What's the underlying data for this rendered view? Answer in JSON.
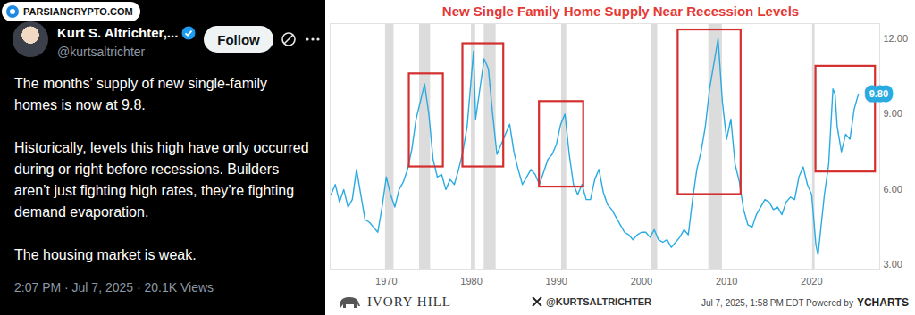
{
  "tweet": {
    "watermark": "PARSIANCRYPTO.COM",
    "name": "Kurt S. Altrichter,...",
    "handle": "@kurtsaltrichter",
    "button": "Follow",
    "paragraphs": [
      "The months’ supply of new single-family homes is now at 9.8.",
      "Historically, levels this high have only occurred during or right before recessions. Builders aren’t just fighting high rates, they’re fighting demand evaporation.",
      "The housing market is weak."
    ],
    "timestamp": "2:07 PM · Jul 7, 2025 · 20.1K Views"
  },
  "chart_data": {
    "type": "line",
    "title": "New Single Family Home Supply Near Recession Levels",
    "x": [
      1963.5,
      1964,
      1964.5,
      1965,
      1965.5,
      1966,
      1966.5,
      1967,
      1967.5,
      1968,
      1968.5,
      1969,
      1969.5,
      1970,
      1970.5,
      1971,
      1971.5,
      1972,
      1972.5,
      1973,
      1973.5,
      1974,
      1974.5,
      1975,
      1975.5,
      1976,
      1976.5,
      1977,
      1977.5,
      1978,
      1978.5,
      1979,
      1979.5,
      1980,
      1980.25,
      1980.5,
      1981,
      1981.5,
      1982,
      1982.5,
      1983,
      1983.5,
      1984,
      1984.5,
      1985,
      1985.5,
      1986,
      1986.5,
      1987,
      1987.5,
      1988,
      1988.5,
      1989,
      1989.5,
      1990,
      1990.5,
      1991,
      1991.5,
      1992,
      1992.5,
      1993,
      1993.5,
      1994,
      1994.5,
      1995,
      1995.5,
      1996,
      1996.5,
      1997,
      1997.5,
      1998,
      1998.5,
      1999,
      1999.5,
      2000,
      2000.5,
      2001,
      2001.5,
      2002,
      2002.5,
      2003,
      2003.5,
      2004,
      2004.5,
      2005,
      2005.5,
      2006,
      2006.5,
      2007,
      2007.5,
      2008,
      2008.5,
      2009,
      2009.5,
      2010,
      2010.5,
      2011,
      2011.5,
      2012,
      2012.5,
      2013,
      2013.5,
      2014,
      2014.5,
      2015,
      2015.5,
      2016,
      2016.5,
      2017,
      2017.5,
      2018,
      2018.5,
      2019,
      2019.5,
      2020,
      2020.5,
      2020.75,
      2021,
      2021.5,
      2022,
      2022.5,
      2022.75,
      2023,
      2023.5,
      2024,
      2024.5,
      2025,
      2025.5
    ],
    "series": [
      {
        "color": "#29abe2",
        "values": [
          5.8,
          6.2,
          5.5,
          6.0,
          5.3,
          5.6,
          6.8,
          5.8,
          4.8,
          4.7,
          4.5,
          4.3,
          5.3,
          6.5,
          5.8,
          5.3,
          6.0,
          6.3,
          6.8,
          7.6,
          8.8,
          9.5,
          10.2,
          9.0,
          7.2,
          6.5,
          6.6,
          6.0,
          6.4,
          6.2,
          6.8,
          7.5,
          8.5,
          10.5,
          11.5,
          8.8,
          10.0,
          11.2,
          10.8,
          9.0,
          7.4,
          7.8,
          8.2,
          8.6,
          7.5,
          6.8,
          6.2,
          6.5,
          6.8,
          6.6,
          6.2,
          6.7,
          7.2,
          7.4,
          7.8,
          8.6,
          9.0,
          7.4,
          6.2,
          5.8,
          6.2,
          5.6,
          5.6,
          6.4,
          6.8,
          5.9,
          5.4,
          5.2,
          4.9,
          4.6,
          4.3,
          4.2,
          4.0,
          4.2,
          4.3,
          4.3,
          4.1,
          4.4,
          4.0,
          3.9,
          4.0,
          3.7,
          3.9,
          4.1,
          4.4,
          4.2,
          5.6,
          6.8,
          7.5,
          8.5,
          10.0,
          11.0,
          12.0,
          9.5,
          8.0,
          8.8,
          7.0,
          6.3,
          5.2,
          4.6,
          4.5,
          5.0,
          5.3,
          5.6,
          5.5,
          5.2,
          5.3,
          5.0,
          5.5,
          5.7,
          5.6,
          6.5,
          6.9,
          6.2,
          5.8,
          3.8,
          3.4,
          4.2,
          5.8,
          7.0,
          10.0,
          9.8,
          8.5,
          7.5,
          8.2,
          8.0,
          9.2,
          9.8
        ]
      }
    ],
    "xlim": [
      1963.4,
      2028
    ],
    "xticks": [
      1970,
      1980,
      1990,
      2000,
      2010,
      2020
    ],
    "ylim": [
      2.8,
      12.6
    ],
    "yticks": [
      {
        "value": 3,
        "label": "3.00"
      },
      {
        "value": 6,
        "label": "6.00"
      },
      {
        "value": 9,
        "label": "9.00"
      },
      {
        "value": 12,
        "label": "12.00"
      }
    ],
    "grid": false,
    "recessions": [
      [
        1969.9,
        1970.9
      ],
      [
        1973.9,
        1975.2
      ],
      [
        1980.0,
        1980.5
      ],
      [
        1981.5,
        1982.9
      ],
      [
        1990.6,
        1991.2
      ],
      [
        2001.2,
        2001.9
      ],
      [
        2007.9,
        2009.5
      ],
      [
        2020.1,
        2020.4
      ]
    ],
    "highlight_boxes": [
      [
        1972.7,
        1976.7,
        6.9,
        10.6
      ],
      [
        1979.0,
        1983.8,
        6.9,
        11.8
      ],
      [
        1988.0,
        1993.2,
        6.1,
        9.5
      ],
      [
        2004.3,
        2011.7,
        5.8,
        12.35
      ],
      [
        2020.5,
        2027.5,
        6.7,
        10.9
      ]
    ],
    "annotations": [
      {
        "x": 2025.5,
        "y": 9.8,
        "label": "9.80"
      }
    ],
    "footer": {
      "left": "IVORY HILL",
      "center": "@KURTSALTRICHTER",
      "right": "Jul 7, 2025, 1:58 PM EDT Powered by",
      "brand": "YCHARTS"
    }
  }
}
